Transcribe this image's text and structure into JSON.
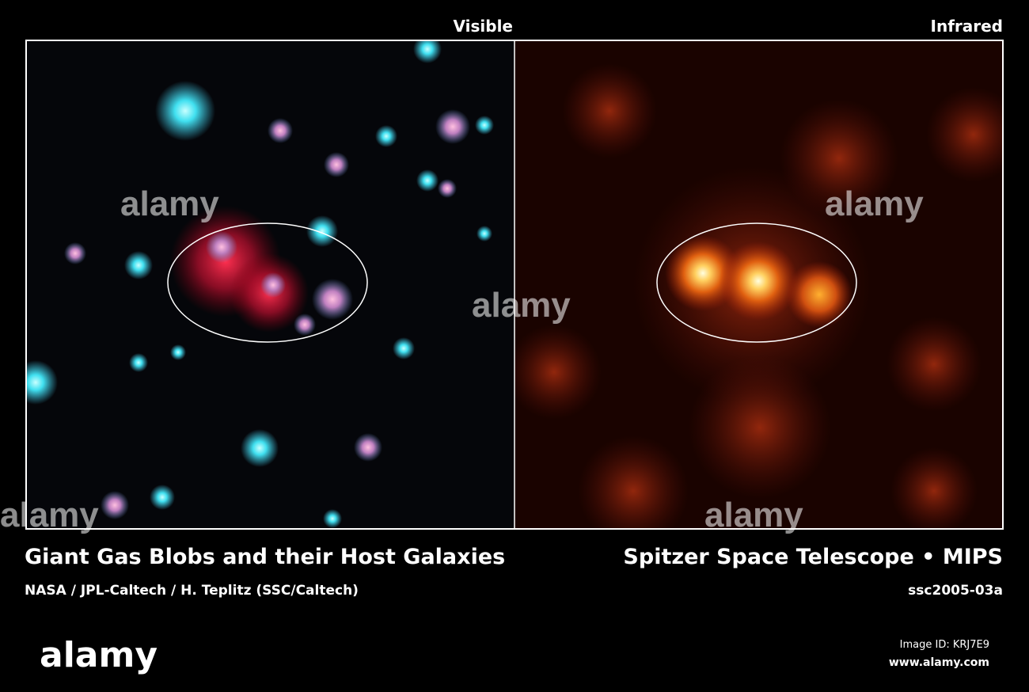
{
  "panels": [
    {
      "label": "Visible"
    },
    {
      "label": "Infrared"
    }
  ],
  "caption": {
    "title_left": "Giant Gas Blobs and their Host Galaxies",
    "credit": "NASA / JPL-Caltech / H. Teplitz (SSC/Caltech)",
    "title_right": "Spitzer Space Telescope • MIPS",
    "id": "ssc2005-03a"
  },
  "watermark": {
    "logo": "alamy",
    "image_id": "Image ID: KRJ7E9",
    "url": "www.alamy.com"
  }
}
